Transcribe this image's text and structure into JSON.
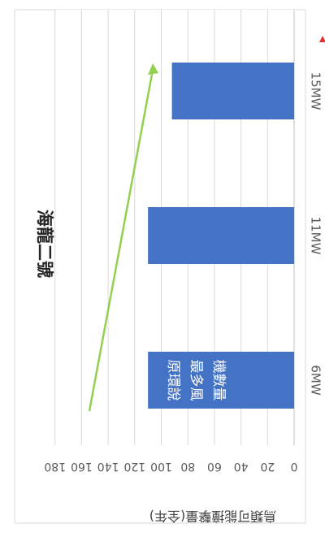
{
  "chart_data": {
    "type": "bar",
    "title": "海龍二號",
    "ylabel": "鳥類可能撞擊量(全年)",
    "xlabel": "",
    "orientation": "rotated 90deg clockwise (categories along vertical, values along horizontal)",
    "categories": [
      "6MW",
      "11MW",
      "15MW"
    ],
    "values": [
      110,
      110,
      92
    ],
    "value_axis": {
      "min": 0,
      "max": 180,
      "step": 20,
      "ticks": [
        "0",
        "20",
        "40",
        "60",
        "80",
        "100",
        "120",
        "140",
        "160",
        "180"
      ]
    },
    "grid": true,
    "bar_color": "#4472c4",
    "annotations": [
      {
        "text": [
          "原環說",
          "最多風",
          "機數量"
        ],
        "color": "#ffffff",
        "on_category": "6MW"
      },
      {
        "type": "trend-arrow",
        "color": "#92d050",
        "description": "green arrow pointing up from 6MW to 15MW"
      }
    ]
  },
  "colors": {
    "background": "#ffffff",
    "gridline": "#d9d9d9",
    "axis_text": "#595959",
    "title_text": "#262626",
    "bar": "#4472c4",
    "arrow": "#92d050",
    "red_mark": "#e03030"
  }
}
